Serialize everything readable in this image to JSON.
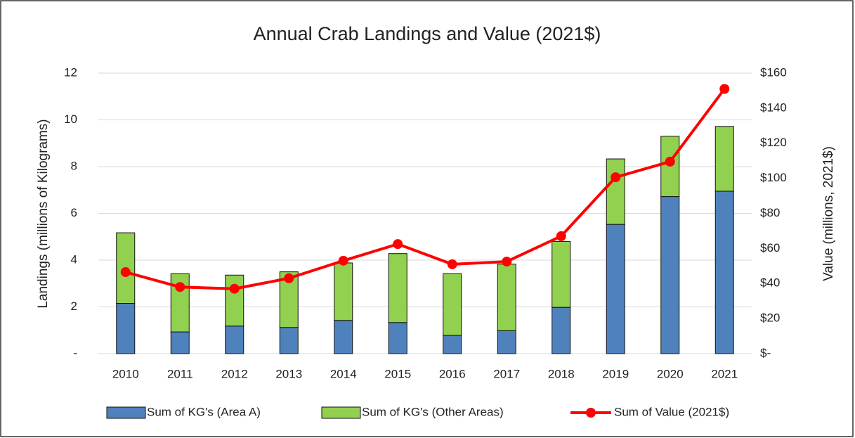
{
  "chart_data": {
    "type": "bar",
    "stacked": true,
    "title": "Annual Crab Landings and Value (2021$)",
    "y_label": "Landings (millions of Kilograms)",
    "y2_label": "Value (millions, 2021$)",
    "categories": [
      "2010",
      "2011",
      "2012",
      "2013",
      "2014",
      "2015",
      "2016",
      "2017",
      "2018",
      "2019",
      "2020",
      "2021"
    ],
    "series": [
      {
        "name": "Sum of KG's (Area A)",
        "type": "bar",
        "color": "#4f81bd",
        "values": [
          2.15,
          0.93,
          1.18,
          1.12,
          1.42,
          1.33,
          0.78,
          0.98,
          1.98,
          5.53,
          6.72,
          6.95
        ]
      },
      {
        "name": "Sum of KG's (Other Areas)",
        "type": "bar",
        "color": "#92d050",
        "values": [
          3.02,
          2.49,
          2.18,
          2.38,
          2.46,
          2.95,
          2.64,
          2.85,
          2.82,
          2.8,
          2.58,
          2.77
        ]
      },
      {
        "name": "Sum of Value (2021$)",
        "type": "line",
        "axis": "y2",
        "color": "#ff0000",
        "values": [
          46.5,
          38,
          37,
          43,
          53,
          62.5,
          51,
          52.5,
          67,
          100.6,
          109.5,
          151
        ]
      }
    ],
    "ylim": [
      0,
      12
    ],
    "yticks": [
      {
        "value": 0,
        "label": "-"
      },
      2,
      4,
      6,
      8,
      10,
      12
    ],
    "y2lim": [
      0,
      160
    ],
    "y2ticks": [
      {
        "value": 0,
        "label": "$-"
      },
      {
        "value": 20,
        "label": "$20"
      },
      {
        "value": 40,
        "label": "$40"
      },
      {
        "value": 60,
        "label": "$60"
      },
      {
        "value": 80,
        "label": "$80"
      },
      {
        "value": 100,
        "label": "$100"
      },
      {
        "value": 120,
        "label": "$120"
      },
      {
        "value": 140,
        "label": "$140"
      },
      {
        "value": 160,
        "label": "$160"
      }
    ],
    "grid": true,
    "legend": "bottom"
  }
}
